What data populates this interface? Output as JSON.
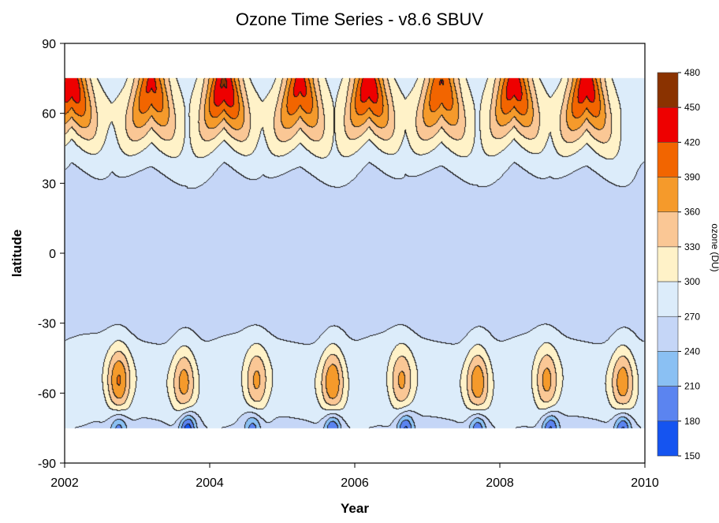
{
  "chart_data": {
    "type": "heatmap",
    "subtype": "filled-contour",
    "title": "Ozone Time Series - v8.6 SBUV",
    "xlabel": "Year",
    "ylabel": "latitude",
    "xlim": [
      2002,
      2010
    ],
    "ylim": [
      -90,
      90
    ],
    "x_ticks": [
      2002,
      2004,
      2006,
      2008,
      2010
    ],
    "y_ticks": [
      90,
      60,
      30,
      0,
      -30,
      -60,
      -90
    ],
    "data_lat_range": [
      -75,
      75
    ],
    "grid": false,
    "colorbar": {
      "label": "ozone (DU)",
      "ticks": [
        480,
        450,
        420,
        390,
        360,
        330,
        300,
        270,
        240,
        210,
        180,
        150
      ],
      "colors": [
        "#8a3200",
        "#ee0000",
        "#f26500",
        "#f59a2b",
        "#fac795",
        "#fff2c8",
        "#dcecfa",
        "#c5d6f7",
        "#8ac0f3",
        "#5b84f0",
        "#1554f0"
      ]
    },
    "annual_peaks": {
      "north_spring_peak_year": [
        2002.1,
        2003.2,
        2004.2,
        2005.25,
        2006.2,
        2007.2,
        2008.2,
        2009.2
      ],
      "north_peak_du": [
        425,
        415,
        435,
        420,
        425,
        410,
        420,
        430
      ],
      "south_midlat_peak_year": [
        2002.75,
        2003.65,
        2004.65,
        2005.7,
        2006.65,
        2007.7,
        2008.65,
        2009.7
      ],
      "south_midlat_peak_du": [
        360,
        340,
        335,
        355,
        335,
        350,
        340,
        345
      ],
      "antarctic_min_year": [
        2002.75,
        2003.7,
        2004.6,
        2005.7,
        2006.7,
        2007.7,
        2008.7,
        2009.7
      ],
      "antarctic_min_du": [
        190,
        155,
        190,
        165,
        170,
        175,
        170,
        165
      ]
    }
  }
}
